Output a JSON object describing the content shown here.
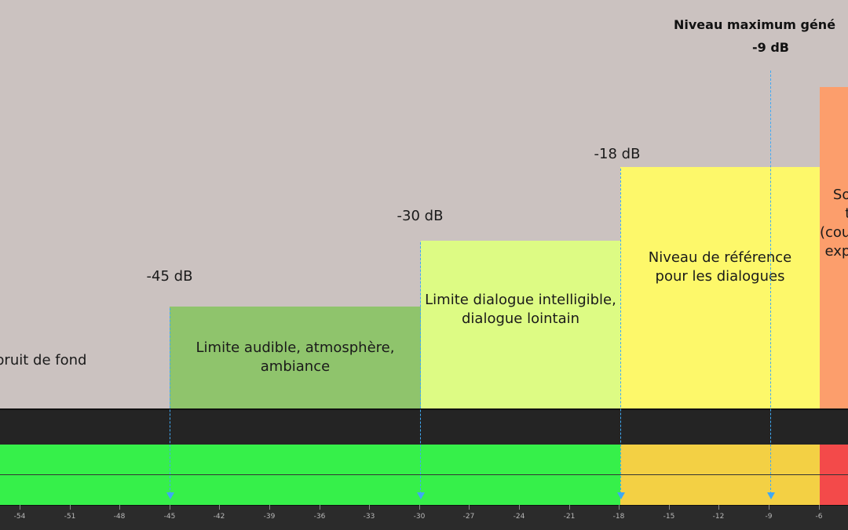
{
  "title": {
    "main": "Niveau maximum géné",
    "value": "-9 dB"
  },
  "levels": {
    "l45": "-45 dB",
    "l30": "-30 dB",
    "l18": "-18 dB"
  },
  "zones": {
    "background_noise": "bruit de fond",
    "audible": "Limite audible, atmosphère,\nambiance",
    "dialogue_limit": "Limite dialogue intelligible,\ndialogue lointain",
    "reference": "Niveau de référence\npour les dialogues",
    "partial": "So\nt\n(cou\nexp"
  },
  "scale": {
    "ticks": [
      "-54",
      "-51",
      "-48",
      "-45",
      "-42",
      "-39",
      "-36",
      "-33",
      "-30",
      "-27",
      "-24",
      "-21",
      "-18",
      "-15",
      "-12",
      "-9",
      "-6"
    ]
  },
  "colors": {
    "background": "#cbc2c0",
    "zone_green": "#8fc46c",
    "zone_lightgreen": "#ddfb84",
    "zone_yellow": "#fdf86a",
    "zone_orange": "#fc9e6c",
    "meter_green": "#36f04a",
    "meter_yellow": "#f3d044",
    "meter_red": "#f34a4a",
    "marker_blue": "#3fa9f5"
  }
}
